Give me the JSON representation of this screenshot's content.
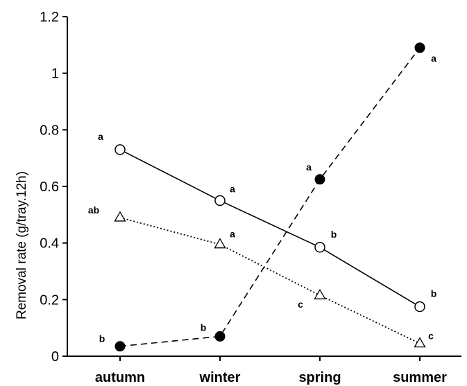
{
  "chart_data": {
    "type": "line",
    "title": "",
    "xlabel": "",
    "ylabel": "Removal rate (g/tray.12h)",
    "ylim": [
      0,
      1.2
    ],
    "yticks": [
      "0",
      "0.2",
      "0.4",
      "0.6",
      "0.8",
      "1",
      "1.2"
    ],
    "categories": [
      "autumn",
      "winter",
      "spring",
      "summer"
    ],
    "grid": false,
    "legend": "none",
    "series": [
      {
        "marker": "open-circle",
        "line": "solid",
        "values": [
          0.73,
          0.55,
          0.385,
          0.175
        ],
        "labels": [
          "a",
          "a",
          "b",
          "b"
        ]
      },
      {
        "marker": "open-triangle",
        "line": "dotted",
        "values": [
          0.49,
          0.395,
          0.215,
          0.045
        ],
        "labels": [
          "ab",
          "a",
          "c",
          "c"
        ]
      },
      {
        "marker": "filled-circle",
        "line": "dashed",
        "values": [
          0.035,
          0.07,
          0.625,
          1.09
        ],
        "labels": [
          "b",
          "b",
          "a",
          "a"
        ]
      }
    ]
  }
}
